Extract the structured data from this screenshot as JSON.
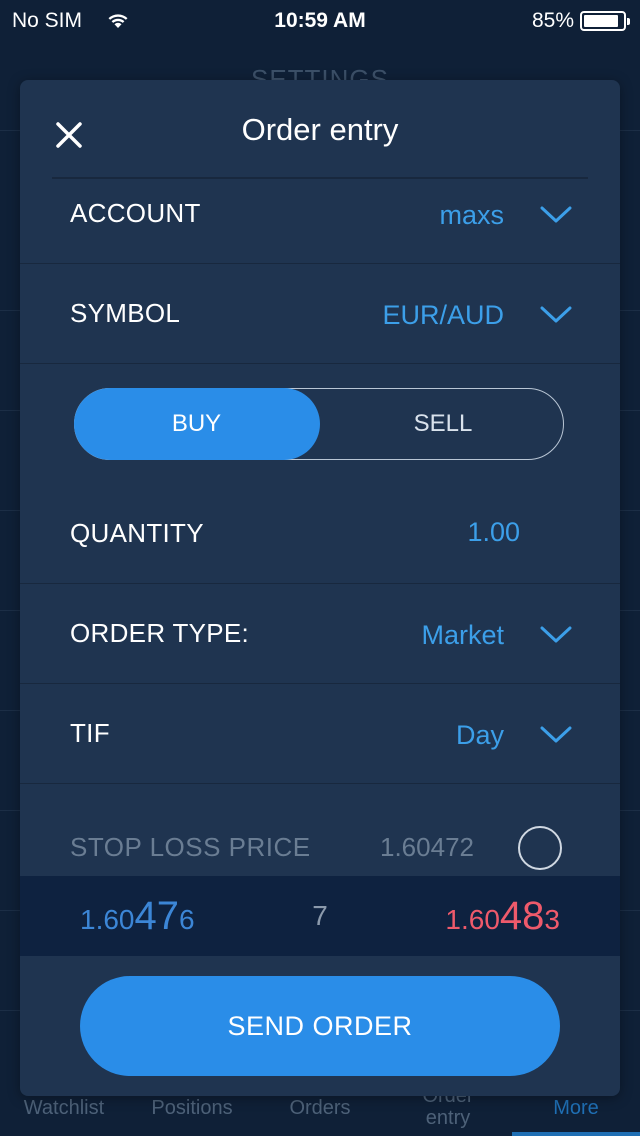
{
  "status_bar": {
    "carrier": "No SIM",
    "time": "10:59 AM",
    "battery": "85%"
  },
  "background": {
    "title": "SETTINGS"
  },
  "modal": {
    "title": "Order entry",
    "rows": {
      "account": {
        "label": "ACCOUNT",
        "value": "maxs"
      },
      "symbol": {
        "label": "SYMBOL",
        "value": "EUR/AUD"
      },
      "quantity": {
        "label": "QUANTITY",
        "value": "1.00"
      },
      "order_type": {
        "label": "ORDER TYPE:",
        "value": "Market"
      },
      "tif": {
        "label": "TIF",
        "value": "Day"
      }
    },
    "side": {
      "buy": "BUY",
      "sell": "SELL",
      "selected": "BUY"
    },
    "stop_loss": {
      "label": "STOP LOSS PRICE",
      "value": "1.60472",
      "enabled": false
    },
    "quote": {
      "bid": {
        "prefix": "1.60",
        "big": "47",
        "sub": "6"
      },
      "spread": "7",
      "ask": {
        "prefix": "1.60",
        "big": "48",
        "sub": "3"
      }
    },
    "send_button": "SEND ORDER"
  },
  "tabs": [
    {
      "label": "Watchlist",
      "active": false
    },
    {
      "label": "Positions",
      "active": false
    },
    {
      "label": "Orders",
      "active": false
    },
    {
      "label": "Order entry",
      "line1": "Order",
      "line2": "entry",
      "active": false
    },
    {
      "label": "More",
      "active": true
    }
  ],
  "colors": {
    "background": "#0f2037",
    "modal": "#1f3450",
    "accent": "#2a8de8",
    "value_text": "#3c9fe9",
    "bid": "#3c86d6",
    "ask": "#ee5a6b"
  }
}
